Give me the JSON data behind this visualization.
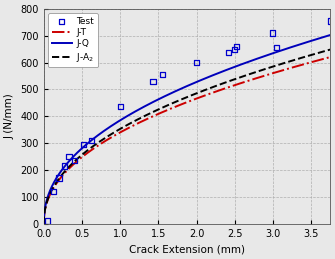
{
  "title": "",
  "xlabel": "Crack Extension (mm)",
  "ylabel": "J (N/mm)",
  "xlim": [
    0,
    3.75
  ],
  "ylim": [
    0,
    800
  ],
  "xticks": [
    0,
    0.5,
    1.0,
    1.5,
    2.0,
    2.5,
    3.0,
    3.5
  ],
  "yticks": [
    0,
    100,
    200,
    300,
    400,
    500,
    600,
    700,
    800
  ],
  "test_x": [
    0.05,
    0.13,
    0.2,
    0.27,
    0.33,
    0.4,
    0.52,
    0.63,
    1.0,
    1.43,
    1.55,
    2.0,
    2.42,
    2.5,
    2.52,
    3.0,
    3.05,
    3.75
  ],
  "test_y": [
    10,
    120,
    170,
    215,
    250,
    235,
    295,
    310,
    435,
    530,
    555,
    600,
    638,
    648,
    660,
    710,
    655,
    755
  ],
  "jT_A": 340,
  "jT_n": 0.455,
  "jQ_A": 385,
  "jQ_n": 0.455,
  "jA2_A": 353,
  "jA2_n": 0.46,
  "jT_color": "#cc0000",
  "jQ_color": "#0000bb",
  "jA2_color": "#000000",
  "test_color": "#0000cc",
  "bg_color": "#e8e8e8",
  "grid_color": "#aaaaaa",
  "legend_loc": "upper left",
  "figsize": [
    3.35,
    2.59
  ],
  "dpi": 100
}
